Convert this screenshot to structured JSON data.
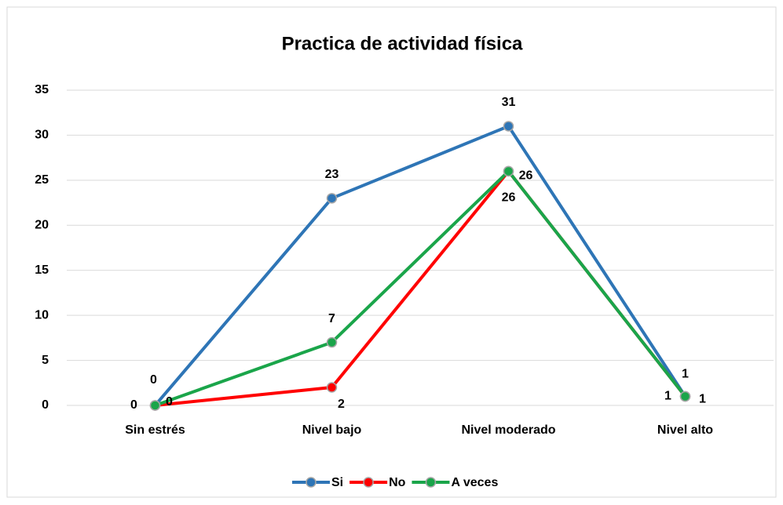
{
  "chart_data": {
    "type": "line",
    "title": "Practica de actividad física",
    "categories": [
      "Sin estrés",
      "Nivel bajo",
      "Nivel moderado",
      "Nivel alto"
    ],
    "series": [
      {
        "name": "Si",
        "color": "#2e75b6",
        "values": [
          0,
          23,
          31,
          1
        ]
      },
      {
        "name": "No",
        "color": "#ff0000",
        "values": [
          0,
          2,
          26,
          1
        ]
      },
      {
        "name": "A veces",
        "color": "#1aa54a",
        "values": [
          0,
          7,
          26,
          1
        ]
      }
    ],
    "ylim": [
      0,
      35
    ],
    "yticks": [
      0,
      5,
      10,
      15,
      20,
      25,
      30,
      35
    ],
    "grid": true,
    "legend": "bottom"
  }
}
